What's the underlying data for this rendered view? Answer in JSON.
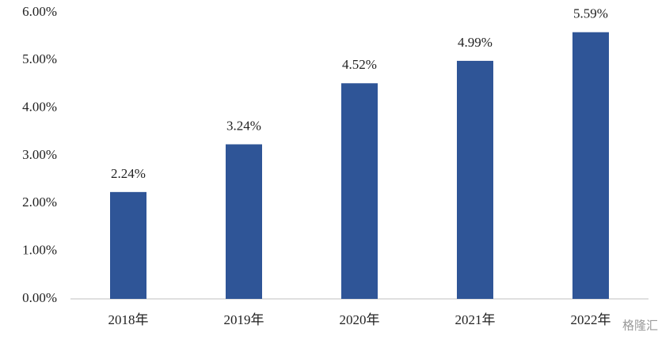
{
  "chart_data": {
    "type": "bar",
    "categories": [
      "2018年",
      "2019年",
      "2020年",
      "2021年",
      "2022年"
    ],
    "values": [
      2.24,
      3.24,
      4.52,
      4.99,
      5.59
    ],
    "value_labels": [
      "2.24%",
      "3.24%",
      "4.52%",
      "4.99%",
      "5.59%"
    ],
    "color": "#2f5597",
    "ylim": [
      0,
      6
    ],
    "yticks": [
      {
        "value": 0,
        "label": "0.00%"
      },
      {
        "value": 1,
        "label": "1.00%"
      },
      {
        "value": 2,
        "label": "2.00%"
      },
      {
        "value": 3,
        "label": "3.00%"
      },
      {
        "value": 4,
        "label": "4.00%"
      },
      {
        "value": 5,
        "label": "5.00%"
      },
      {
        "value": 6,
        "label": "6.00%"
      }
    ],
    "grid": false,
    "watermark": "格隆汇"
  }
}
